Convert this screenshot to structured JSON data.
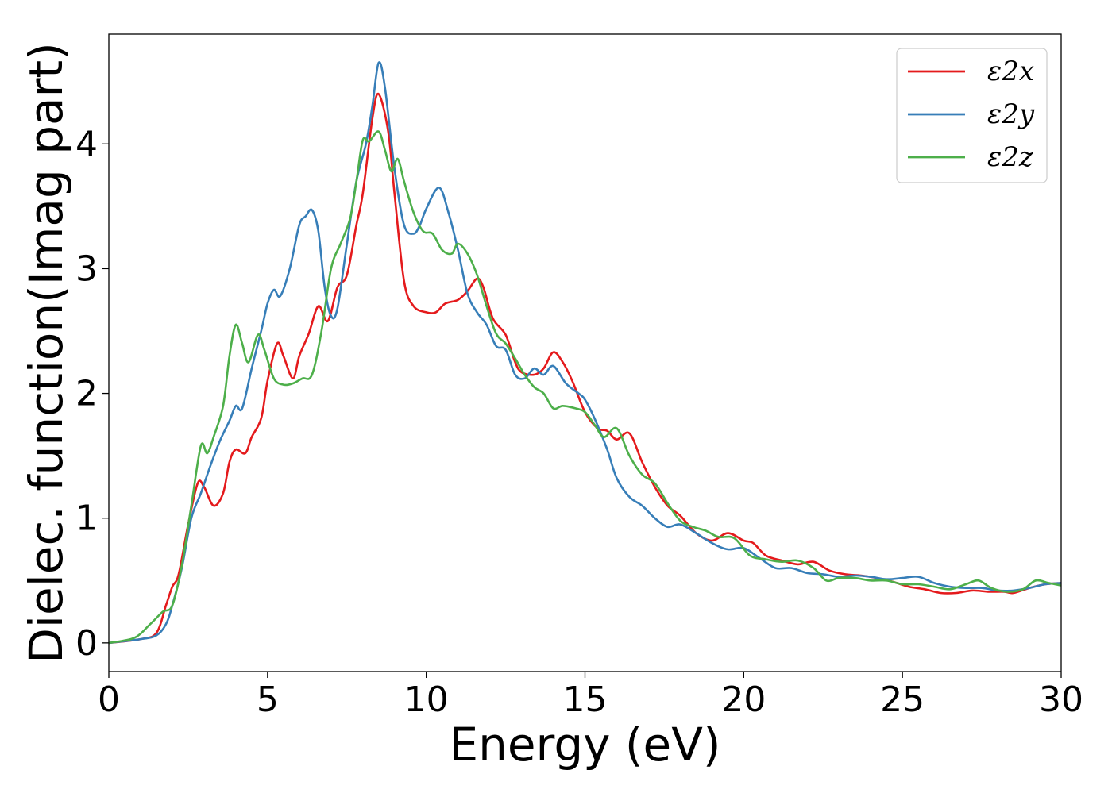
{
  "chart_data": {
    "type": "line",
    "title": "",
    "xlabel": "Energy (eV)",
    "ylabel": "Dielec. function(Imag part)",
    "xlim": [
      0,
      30
    ],
    "ylim": [
      -0.23,
      4.88
    ],
    "xticks": [
      0,
      5,
      10,
      15,
      20,
      25,
      30
    ],
    "xtick_labels": [
      "0",
      "5",
      "10",
      "15",
      "20",
      "25",
      "30"
    ],
    "yticks": [
      0,
      1,
      2,
      3,
      4
    ],
    "ytick_labels": [
      "0",
      "1",
      "2",
      "3",
      "4"
    ],
    "grid": false,
    "legend_position": "top-right",
    "series": [
      {
        "name": "ε2x",
        "color": "#e41a1c",
        "points": [
          [
            0,
            0
          ],
          [
            1,
            0.03
          ],
          [
            1.5,
            0.08
          ],
          [
            1.8,
            0.3
          ],
          [
            2,
            0.45
          ],
          [
            2.2,
            0.55
          ],
          [
            2.5,
            0.95
          ],
          [
            2.8,
            1.28
          ],
          [
            3.0,
            1.25
          ],
          [
            3.3,
            1.1
          ],
          [
            3.6,
            1.2
          ],
          [
            3.8,
            1.45
          ],
          [
            4.0,
            1.55
          ],
          [
            4.3,
            1.52
          ],
          [
            4.5,
            1.65
          ],
          [
            4.8,
            1.8
          ],
          [
            5.0,
            2.1
          ],
          [
            5.3,
            2.4
          ],
          [
            5.5,
            2.3
          ],
          [
            5.8,
            2.12
          ],
          [
            6.0,
            2.3
          ],
          [
            6.3,
            2.48
          ],
          [
            6.6,
            2.7
          ],
          [
            6.9,
            2.58
          ],
          [
            7.2,
            2.85
          ],
          [
            7.5,
            2.95
          ],
          [
            7.8,
            3.35
          ],
          [
            8.0,
            3.6
          ],
          [
            8.3,
            4.2
          ],
          [
            8.5,
            4.4
          ],
          [
            8.8,
            4.1
          ],
          [
            9.0,
            3.6
          ],
          [
            9.3,
            2.9
          ],
          [
            9.6,
            2.7
          ],
          [
            10.0,
            2.65
          ],
          [
            10.3,
            2.65
          ],
          [
            10.6,
            2.72
          ],
          [
            11.0,
            2.75
          ],
          [
            11.3,
            2.82
          ],
          [
            11.6,
            2.92
          ],
          [
            11.8,
            2.85
          ],
          [
            12.1,
            2.6
          ],
          [
            12.5,
            2.47
          ],
          [
            12.8,
            2.25
          ],
          [
            13.0,
            2.17
          ],
          [
            13.4,
            2.15
          ],
          [
            13.7,
            2.2
          ],
          [
            14.0,
            2.33
          ],
          [
            14.3,
            2.25
          ],
          [
            14.6,
            2.1
          ],
          [
            15.0,
            1.85
          ],
          [
            15.4,
            1.72
          ],
          [
            15.7,
            1.7
          ],
          [
            16.0,
            1.63
          ],
          [
            16.4,
            1.68
          ],
          [
            16.8,
            1.45
          ],
          [
            17.2,
            1.25
          ],
          [
            17.6,
            1.1
          ],
          [
            18.0,
            1.02
          ],
          [
            18.5,
            0.88
          ],
          [
            19.0,
            0.82
          ],
          [
            19.5,
            0.88
          ],
          [
            20.0,
            0.82
          ],
          [
            20.3,
            0.8
          ],
          [
            20.7,
            0.7
          ],
          [
            21.2,
            0.66
          ],
          [
            21.7,
            0.63
          ],
          [
            22.2,
            0.65
          ],
          [
            22.7,
            0.58
          ],
          [
            23.2,
            0.55
          ],
          [
            23.7,
            0.54
          ],
          [
            24.2,
            0.52
          ],
          [
            24.7,
            0.49
          ],
          [
            25.2,
            0.45
          ],
          [
            25.7,
            0.43
          ],
          [
            26.2,
            0.4
          ],
          [
            26.7,
            0.4
          ],
          [
            27.2,
            0.42
          ],
          [
            27.7,
            0.41
          ],
          [
            28.2,
            0.41
          ],
          [
            28.5,
            0.4
          ],
          [
            29.0,
            0.44
          ],
          [
            29.5,
            0.47
          ],
          [
            30,
            0.48
          ]
        ]
      },
      {
        "name": "ε2y",
        "color": "#377eb8",
        "points": [
          [
            0,
            0
          ],
          [
            1,
            0.03
          ],
          [
            1.5,
            0.06
          ],
          [
            1.8,
            0.15
          ],
          [
            2,
            0.3
          ],
          [
            2.3,
            0.6
          ],
          [
            2.6,
            1.0
          ],
          [
            2.9,
            1.2
          ],
          [
            3.2,
            1.42
          ],
          [
            3.5,
            1.62
          ],
          [
            3.8,
            1.78
          ],
          [
            4.0,
            1.9
          ],
          [
            4.2,
            1.88
          ],
          [
            4.5,
            2.2
          ],
          [
            4.8,
            2.5
          ],
          [
            5.0,
            2.72
          ],
          [
            5.2,
            2.83
          ],
          [
            5.4,
            2.78
          ],
          [
            5.7,
            3.0
          ],
          [
            6.0,
            3.35
          ],
          [
            6.2,
            3.42
          ],
          [
            6.4,
            3.47
          ],
          [
            6.6,
            3.3
          ],
          [
            6.8,
            2.85
          ],
          [
            7.0,
            2.62
          ],
          [
            7.2,
            2.68
          ],
          [
            7.5,
            3.2
          ],
          [
            7.8,
            3.7
          ],
          [
            8.1,
            4.0
          ],
          [
            8.3,
            4.3
          ],
          [
            8.5,
            4.65
          ],
          [
            8.7,
            4.45
          ],
          [
            9.0,
            3.8
          ],
          [
            9.3,
            3.35
          ],
          [
            9.6,
            3.28
          ],
          [
            9.8,
            3.35
          ],
          [
            10.0,
            3.48
          ],
          [
            10.4,
            3.65
          ],
          [
            10.7,
            3.45
          ],
          [
            11.0,
            3.15
          ],
          [
            11.3,
            2.8
          ],
          [
            11.6,
            2.65
          ],
          [
            11.9,
            2.55
          ],
          [
            12.2,
            2.38
          ],
          [
            12.5,
            2.35
          ],
          [
            12.8,
            2.15
          ],
          [
            13.1,
            2.12
          ],
          [
            13.4,
            2.2
          ],
          [
            13.7,
            2.15
          ],
          [
            14.0,
            2.22
          ],
          [
            14.4,
            2.08
          ],
          [
            14.8,
            2.0
          ],
          [
            15.0,
            1.95
          ],
          [
            15.3,
            1.8
          ],
          [
            15.7,
            1.55
          ],
          [
            16.0,
            1.32
          ],
          [
            16.4,
            1.17
          ],
          [
            16.8,
            1.1
          ],
          [
            17.2,
            1.0
          ],
          [
            17.6,
            0.93
          ],
          [
            18.0,
            0.95
          ],
          [
            18.5,
            0.88
          ],
          [
            19.0,
            0.8
          ],
          [
            19.5,
            0.75
          ],
          [
            20.0,
            0.76
          ],
          [
            20.5,
            0.68
          ],
          [
            21.0,
            0.6
          ],
          [
            21.5,
            0.6
          ],
          [
            22.0,
            0.56
          ],
          [
            22.5,
            0.55
          ],
          [
            23.0,
            0.53
          ],
          [
            23.5,
            0.54
          ],
          [
            24.0,
            0.53
          ],
          [
            24.5,
            0.51
          ],
          [
            25.0,
            0.52
          ],
          [
            25.5,
            0.53
          ],
          [
            26.0,
            0.48
          ],
          [
            26.5,
            0.45
          ],
          [
            27.0,
            0.44
          ],
          [
            27.5,
            0.44
          ],
          [
            28.0,
            0.42
          ],
          [
            28.5,
            0.42
          ],
          [
            29.0,
            0.44
          ],
          [
            29.5,
            0.47
          ],
          [
            30,
            0.48
          ]
        ]
      },
      {
        "name": "ε2z",
        "color": "#4daf4a",
        "points": [
          [
            0,
            0
          ],
          [
            0.8,
            0.04
          ],
          [
            1.3,
            0.15
          ],
          [
            1.7,
            0.25
          ],
          [
            2.0,
            0.3
          ],
          [
            2.3,
            0.62
          ],
          [
            2.6,
            1.1
          ],
          [
            2.9,
            1.58
          ],
          [
            3.1,
            1.52
          ],
          [
            3.3,
            1.65
          ],
          [
            3.6,
            1.9
          ],
          [
            3.8,
            2.3
          ],
          [
            4.0,
            2.55
          ],
          [
            4.2,
            2.4
          ],
          [
            4.4,
            2.25
          ],
          [
            4.7,
            2.47
          ],
          [
            4.9,
            2.35
          ],
          [
            5.2,
            2.12
          ],
          [
            5.5,
            2.07
          ],
          [
            5.8,
            2.08
          ],
          [
            6.1,
            2.12
          ],
          [
            6.4,
            2.15
          ],
          [
            6.7,
            2.5
          ],
          [
            7.0,
            3.0
          ],
          [
            7.3,
            3.2
          ],
          [
            7.6,
            3.4
          ],
          [
            7.8,
            3.7
          ],
          [
            8.0,
            4.03
          ],
          [
            8.2,
            4.02
          ],
          [
            8.5,
            4.1
          ],
          [
            8.7,
            3.95
          ],
          [
            8.9,
            3.78
          ],
          [
            9.1,
            3.88
          ],
          [
            9.3,
            3.7
          ],
          [
            9.6,
            3.45
          ],
          [
            9.9,
            3.3
          ],
          [
            10.2,
            3.28
          ],
          [
            10.5,
            3.15
          ],
          [
            10.8,
            3.12
          ],
          [
            11.0,
            3.2
          ],
          [
            11.3,
            3.12
          ],
          [
            11.6,
            2.95
          ],
          [
            11.9,
            2.7
          ],
          [
            12.2,
            2.48
          ],
          [
            12.5,
            2.4
          ],
          [
            12.8,
            2.28
          ],
          [
            13.1,
            2.15
          ],
          [
            13.4,
            2.05
          ],
          [
            13.7,
            2.0
          ],
          [
            14.0,
            1.88
          ],
          [
            14.3,
            1.9
          ],
          [
            14.7,
            1.88
          ],
          [
            15.0,
            1.85
          ],
          [
            15.3,
            1.75
          ],
          [
            15.6,
            1.65
          ],
          [
            16.0,
            1.72
          ],
          [
            16.4,
            1.5
          ],
          [
            16.8,
            1.35
          ],
          [
            17.2,
            1.28
          ],
          [
            17.6,
            1.12
          ],
          [
            18.0,
            0.98
          ],
          [
            18.4,
            0.93
          ],
          [
            18.8,
            0.9
          ],
          [
            19.2,
            0.85
          ],
          [
            19.7,
            0.84
          ],
          [
            20.2,
            0.7
          ],
          [
            20.7,
            0.67
          ],
          [
            21.2,
            0.65
          ],
          [
            21.7,
            0.66
          ],
          [
            22.2,
            0.6
          ],
          [
            22.6,
            0.5
          ],
          [
            23.0,
            0.52
          ],
          [
            23.5,
            0.52
          ],
          [
            24.0,
            0.5
          ],
          [
            24.5,
            0.5
          ],
          [
            25.0,
            0.47
          ],
          [
            25.5,
            0.47
          ],
          [
            26.0,
            0.45
          ],
          [
            26.5,
            0.43
          ],
          [
            27.0,
            0.47
          ],
          [
            27.4,
            0.5
          ],
          [
            27.8,
            0.44
          ],
          [
            28.3,
            0.41
          ],
          [
            28.8,
            0.43
          ],
          [
            29.2,
            0.5
          ],
          [
            29.6,
            0.48
          ],
          [
            30,
            0.46
          ]
        ]
      }
    ]
  }
}
